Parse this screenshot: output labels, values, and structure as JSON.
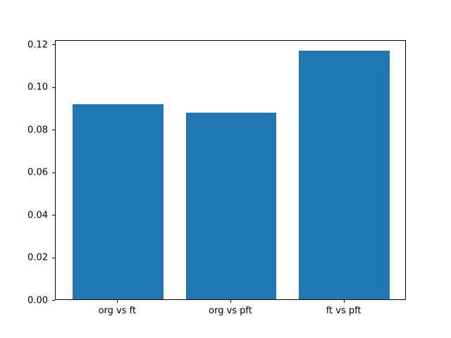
{
  "chart_data": {
    "type": "bar",
    "categories": [
      "org vs ft",
      "org vs pft",
      "ft vs pft"
    ],
    "values": [
      0.0916,
      0.0877,
      0.1166
    ],
    "title": "",
    "xlabel": "",
    "ylabel": "",
    "ylim": [
      0,
      0.122
    ],
    "yticks": [
      0,
      0.02,
      0.04,
      0.06,
      0.08,
      0.1,
      0.12
    ],
    "ytick_decimals": 2,
    "bar_color": "#1f77b4",
    "spine_color": "#000000",
    "tick_label_color": "#000000",
    "figure_background": "#ffffff",
    "axes_background": "#ffffff",
    "grid": false,
    "legend": "none"
  }
}
